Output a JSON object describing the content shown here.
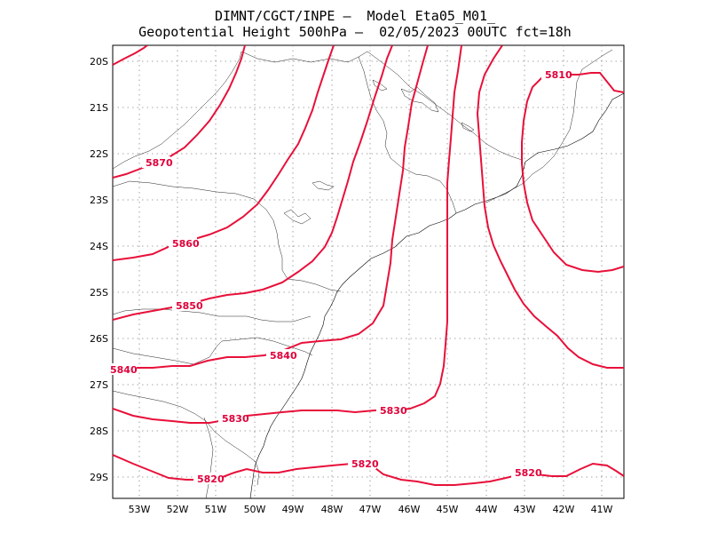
{
  "header": {
    "line1": "DIMNT/CGCT/INPE –  Model Eta05_M01_",
    "line2": "Geopotential Height 500hPa –  02/05/2023 00UTC fct=18h"
  },
  "axes": {
    "lat_labels": [
      "20S",
      "21S",
      "22S",
      "23S",
      "24S",
      "25S",
      "26S",
      "27S",
      "28S",
      "29S"
    ],
    "lon_labels": [
      "53W",
      "52W",
      "51W",
      "50W",
      "49W",
      "48W",
      "47W",
      "46W",
      "45W",
      "44W",
      "43W",
      "42W",
      "41W"
    ]
  },
  "contour_labels": {
    "c5870": "5870",
    "c5860": "5860",
    "c5850": "5850",
    "c5840a": "5840",
    "c5840b": "5840",
    "c5830a": "5830",
    "c5830b": "5830",
    "c5820a": "5820",
    "c5820b": "5820",
    "c5820c": "5820",
    "c5810": "5810"
  },
  "colors": {
    "contour": "#e8103a",
    "coast": "#000000",
    "grid": "#8a8a8a"
  }
}
